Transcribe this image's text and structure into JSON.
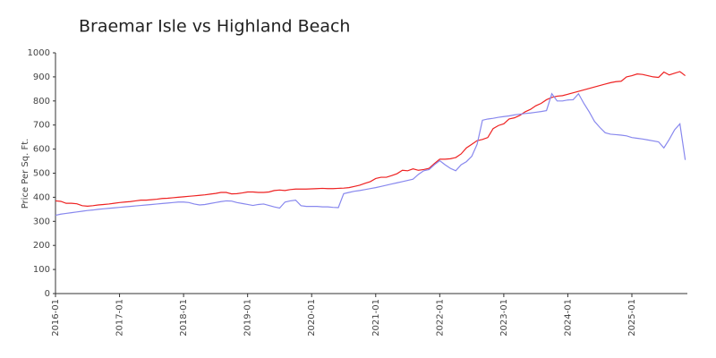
{
  "chart_data": {
    "type": "line",
    "title": "Braemar Isle vs Highland Beach",
    "y_label": "Price Per Sq. Ft.",
    "x": [
      "2016-01",
      "2016-02",
      "2016-03",
      "2016-04",
      "2016-05",
      "2016-06",
      "2016-07",
      "2016-08",
      "2016-09",
      "2016-10",
      "2016-11",
      "2016-12",
      "2017-01",
      "2017-02",
      "2017-03",
      "2017-04",
      "2017-05",
      "2017-06",
      "2017-07",
      "2017-08",
      "2017-09",
      "2017-10",
      "2017-11",
      "2017-12",
      "2018-01",
      "2018-02",
      "2018-03",
      "2018-04",
      "2018-05",
      "2018-06",
      "2018-07",
      "2018-08",
      "2018-09",
      "2018-10",
      "2018-11",
      "2018-12",
      "2019-01",
      "2019-02",
      "2019-03",
      "2019-04",
      "2019-05",
      "2019-06",
      "2019-07",
      "2019-08",
      "2019-09",
      "2019-10",
      "2019-11",
      "2019-12",
      "2020-01",
      "2020-02",
      "2020-03",
      "2020-04",
      "2020-05",
      "2020-06",
      "2020-07",
      "2020-08",
      "2020-09",
      "2020-10",
      "2020-11",
      "2020-12",
      "2021-01",
      "2021-02",
      "2021-03",
      "2021-04",
      "2021-05",
      "2021-06",
      "2021-07",
      "2021-08",
      "2021-09",
      "2021-10",
      "2021-11",
      "2021-12",
      "2022-01",
      "2022-02",
      "2022-03",
      "2022-04",
      "2022-05",
      "2022-06",
      "2022-07",
      "2022-08",
      "2022-09",
      "2022-10",
      "2022-11",
      "2022-12",
      "2023-01",
      "2023-02",
      "2023-03",
      "2023-04",
      "2023-05",
      "2023-06",
      "2023-07",
      "2023-08",
      "2023-09",
      "2023-10",
      "2023-11",
      "2023-12",
      "2024-01",
      "2024-02",
      "2024-03",
      "2024-04",
      "2024-05",
      "2024-06",
      "2024-07",
      "2024-08",
      "2024-09",
      "2024-10",
      "2024-11",
      "2024-12",
      "2025-01",
      "2025-02",
      "2025-03",
      "2025-04",
      "2025-05",
      "2025-06",
      "2025-07",
      "2025-08",
      "2025-09",
      "2025-10",
      "2025-11"
    ],
    "series": [
      {
        "color": "#ee2222",
        "values": [
          385,
          383,
          375,
          375,
          373,
          365,
          363,
          365,
          368,
          370,
          372,
          375,
          378,
          380,
          382,
          385,
          388,
          388,
          390,
          392,
          395,
          396,
          398,
          400,
          402,
          404,
          406,
          408,
          410,
          413,
          416,
          420,
          420,
          414,
          415,
          418,
          422,
          422,
          420,
          420,
          422,
          428,
          430,
          428,
          432,
          434,
          434,
          434,
          435,
          436,
          437,
          436,
          436,
          437,
          438,
          440,
          445,
          450,
          458,
          465,
          478,
          483,
          483,
          490,
          498,
          512,
          510,
          518,
          512,
          515,
          520,
          540,
          558,
          558,
          560,
          565,
          580,
          605,
          620,
          635,
          640,
          648,
          685,
          698,
          705,
          725,
          730,
          740,
          755,
          765,
          780,
          790,
          805,
          815,
          820,
          822,
          828,
          834,
          840,
          846,
          852,
          858,
          864,
          870,
          876,
          880,
          882,
          900,
          905,
          912,
          910,
          905,
          900,
          898,
          920,
          908,
          915,
          922,
          905
        ]
      },
      {
        "color": "#8888ee",
        "values": [
          325,
          330,
          333,
          336,
          339,
          342,
          345,
          347,
          350,
          352,
          354,
          356,
          358,
          360,
          362,
          364,
          366,
          368,
          370,
          372,
          374,
          376,
          378,
          380,
          380,
          378,
          372,
          368,
          370,
          374,
          378,
          382,
          385,
          384,
          378,
          374,
          370,
          366,
          370,
          372,
          366,
          360,
          355,
          380,
          385,
          388,
          365,
          362,
          362,
          362,
          360,
          360,
          358,
          357,
          415,
          420,
          425,
          428,
          432,
          436,
          440,
          445,
          450,
          455,
          460,
          465,
          470,
          475,
          495,
          510,
          515,
          535,
          552,
          535,
          520,
          510,
          535,
          548,
          570,
          620,
          720,
          725,
          728,
          732,
          735,
          738,
          742,
          745,
          748,
          750,
          753,
          756,
          760,
          830,
          800,
          800,
          804,
          805,
          830,
          790,
          755,
          715,
          690,
          668,
          662,
          660,
          658,
          655,
          648,
          645,
          642,
          638,
          634,
          630,
          605,
          640,
          680,
          705,
          555
        ]
      }
    ],
    "xticks": [
      "2016-01",
      "2017-01",
      "2018-01",
      "2019-01",
      "2020-01",
      "2021-01",
      "2022-01",
      "2023-01",
      "2024-01",
      "2025-01"
    ],
    "ylim": [
      0,
      1000
    ],
    "yticks": [
      0,
      100,
      200,
      300,
      400,
      500,
      600,
      700,
      800,
      900,
      1000
    ]
  }
}
